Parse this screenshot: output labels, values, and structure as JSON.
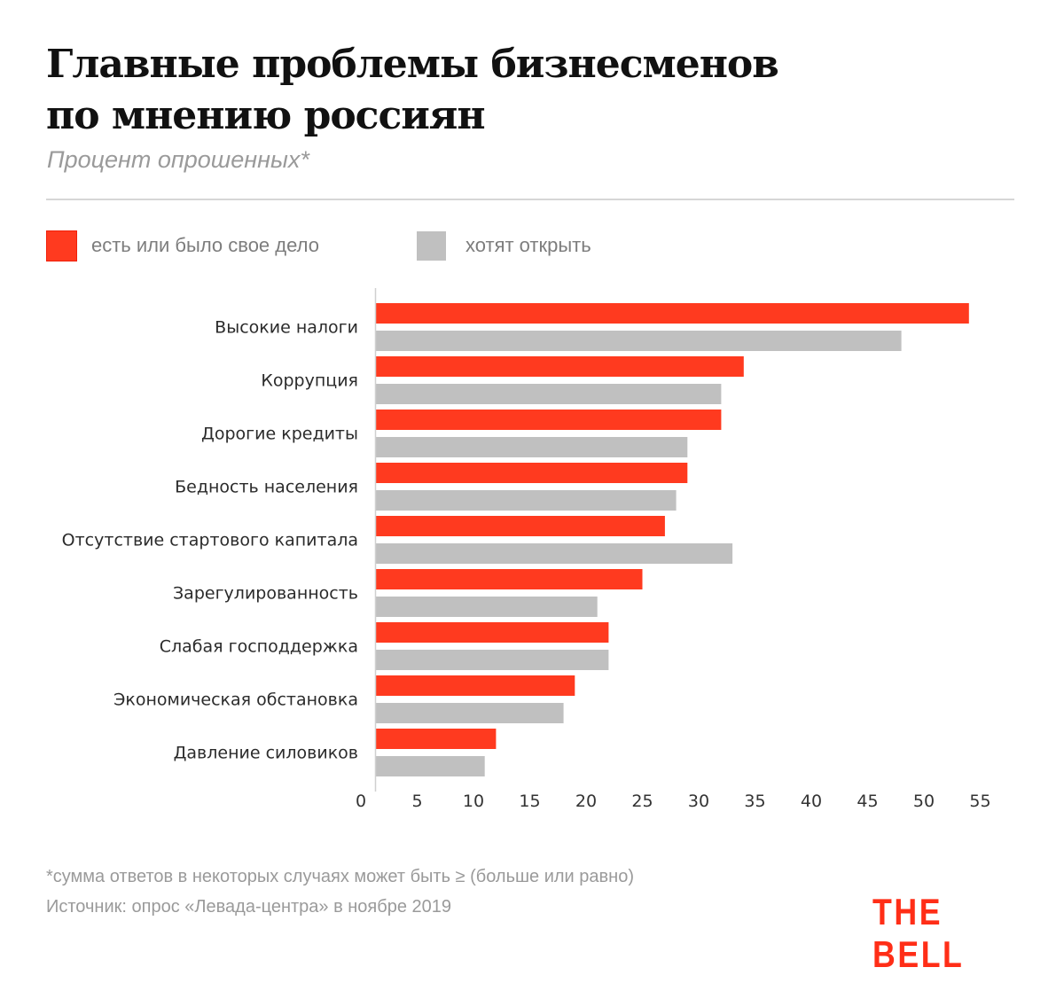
{
  "header": {
    "title_line1": "Главные проблемы бизнесменов",
    "title_line2": "по мнению россиян",
    "subtitle": "Процент опрошенных*"
  },
  "legend": [
    {
      "label": "есть или было свое дело",
      "color": "#ff3a1f"
    },
    {
      "label": "хотят открыть",
      "color": "#c0c0c0"
    }
  ],
  "footer": {
    "note": "*сумма ответов в некоторых случаях может быть ≥ (больше или равно)",
    "source": "Источник: опрос «Левада-центра» в ноябре 2019",
    "logo": "THE BELL"
  },
  "chart_data": {
    "type": "bar",
    "orientation": "horizontal",
    "title": "Главные проблемы бизнесменов по мнению россиян",
    "subtitle": "Процент опрошенных*",
    "xlabel": "",
    "ylabel": "",
    "xlim": [
      0,
      55
    ],
    "xticks": [
      "0",
      "5",
      "10",
      "15",
      "20",
      "25",
      "30",
      "35",
      "40",
      "45",
      "50",
      "55"
    ],
    "grid": false,
    "legend_position": "top-left",
    "categories": [
      "Высокие налоги",
      "Коррупция",
      "Дорогие кредиты",
      "Бедность населения",
      "Отсутствие стартового капитала",
      "Зарегулированность",
      "Слабая господдержка",
      "Экономическая обстановка",
      "Давление силовиков"
    ],
    "series": [
      {
        "name": "есть или было свое дело",
        "color": "#ff3a1f",
        "values": [
          54,
          34,
          32,
          29,
          27,
          25,
          22,
          19,
          12
        ]
      },
      {
        "name": "хотят открыть",
        "color": "#c0c0c0",
        "values": [
          48,
          32,
          29,
          28,
          33,
          21,
          22,
          18,
          11
        ]
      }
    ]
  }
}
